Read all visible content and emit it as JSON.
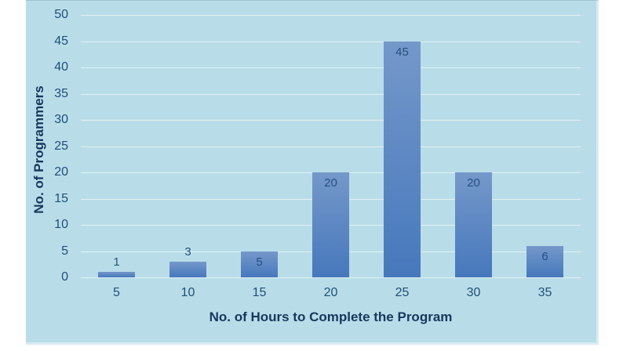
{
  "chart_data": {
    "type": "bar",
    "title": "",
    "categories": [
      "5",
      "10",
      "15",
      "20",
      "25",
      "30",
      "35"
    ],
    "values": [
      1,
      3,
      5,
      20,
      45,
      20,
      6
    ],
    "xlabel": "No. of Hours to Complete the Program",
    "ylabel": "No. of Programmers",
    "ylim": [
      0,
      50
    ],
    "ytick_step": 5,
    "yticks": [
      "0",
      "5",
      "10",
      "15",
      "20",
      "25",
      "30",
      "35",
      "40",
      "45",
      "50"
    ],
    "grid": true,
    "legend": "none",
    "data_labels": true
  },
  "colors": {
    "chart_bg": "#b9dde8",
    "bar_top": "#7598ca",
    "bar_bottom": "#4678bc",
    "gridline": "#e1eff5",
    "tick_label": "#1f4e79",
    "data_label": "#24517e",
    "axis_title": "#17375e"
  }
}
